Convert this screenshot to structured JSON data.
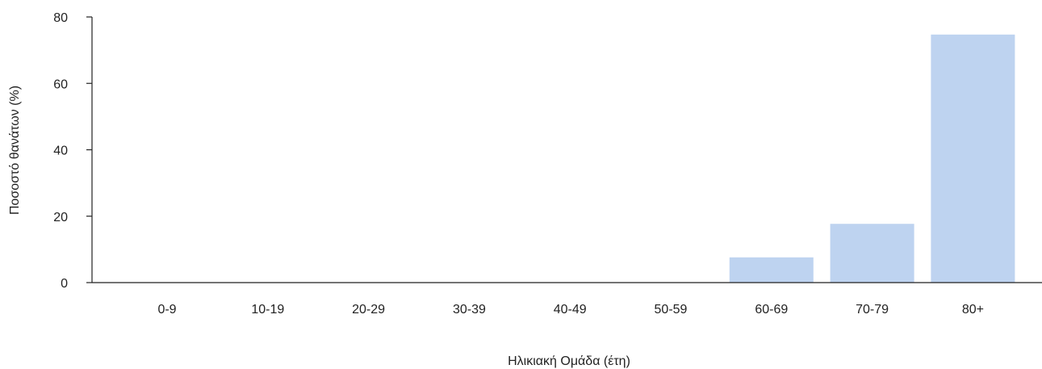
{
  "chart_data": {
    "type": "bar",
    "categories": [
      "0-9",
      "10-19",
      "20-29",
      "30-39",
      "40-49",
      "50-59",
      "60-69",
      "70-79",
      "80+"
    ],
    "values": [
      0,
      0,
      0,
      0,
      0,
      0,
      7.6,
      17.7,
      74.7
    ],
    "xlabel": "Ηλικιακή Ομάδα (έτη)",
    "ylabel": "Ποσοστό θανάτων (%)",
    "ylim": [
      0,
      80
    ],
    "yticks": [
      0,
      20,
      40,
      60,
      80
    ],
    "bar_color": "#bed3f0",
    "axis_color": "#222222",
    "grid": false,
    "legend": "none"
  }
}
